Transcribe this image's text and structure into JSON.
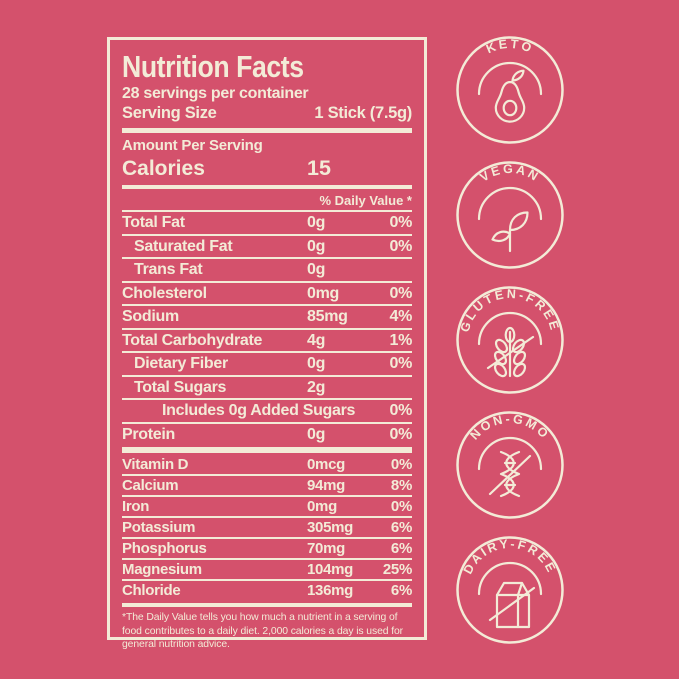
{
  "colors": {
    "background": "#d4516c",
    "cream": "#f3ebd7"
  },
  "label": {
    "title": "Nutrition Facts",
    "servings_per_container": "28 servings per container",
    "serving_size_label": "Serving Size",
    "serving_size_value": "1 Stick (7.5g)",
    "amount_per_serving": "Amount Per Serving",
    "calories_label": "Calories",
    "calories_value": "15",
    "daily_value_header": "% Daily Value *",
    "rows": [
      {
        "name": "Total Fat",
        "amount": "0g",
        "dv": "0%",
        "indent": 0,
        "bold": true
      },
      {
        "name": "Saturated Fat",
        "amount": "0g",
        "dv": "0%",
        "indent": 1,
        "bold": false
      },
      {
        "name": "Trans Fat",
        "amount": "0g",
        "dv": "",
        "indent": 1,
        "bold": false
      },
      {
        "name": "Cholesterol",
        "amount": "0mg",
        "dv": "0%",
        "indent": 0,
        "bold": true
      },
      {
        "name": "Sodium",
        "amount": "85mg",
        "dv": "4%",
        "indent": 0,
        "bold": true
      },
      {
        "name": "Total Carbohydrate",
        "amount": "4g",
        "dv": "1%",
        "indent": 0,
        "bold": true
      },
      {
        "name": "Dietary Fiber",
        "amount": "0g",
        "dv": "0%",
        "indent": 1,
        "bold": false
      },
      {
        "name": "Total Sugars",
        "amount": "2g",
        "dv": "",
        "indent": 1,
        "bold": false
      },
      {
        "name": "Includes 0g Added Sugars",
        "amount": "",
        "dv": "0%",
        "indent": 2,
        "bold": false
      },
      {
        "name": "Protein",
        "amount": "0g",
        "dv": "0%",
        "indent": 0,
        "bold": true
      }
    ],
    "micros": [
      {
        "name": "Vitamin D",
        "amount": "0mcg",
        "dv": "0%"
      },
      {
        "name": "Calcium",
        "amount": "94mg",
        "dv": "8%"
      },
      {
        "name": "Iron",
        "amount": "0mg",
        "dv": "0%"
      },
      {
        "name": "Potassium",
        "amount": "305mg",
        "dv": "6%"
      },
      {
        "name": "Phosphorus",
        "amount": "70mg",
        "dv": "6%"
      },
      {
        "name": "Magnesium",
        "amount": "104mg",
        "dv": "25%"
      },
      {
        "name": "Chloride",
        "amount": "136mg",
        "dv": "6%"
      }
    ],
    "footnote": "*The Daily Value tells you how much a nutrient in a serving of food contributes to a daily diet. 2,000 calories a day is used for general nutrition advice."
  },
  "badges": [
    {
      "label": "KETO",
      "icon": "avocado-icon"
    },
    {
      "label": "VEGAN",
      "icon": "sprout-icon"
    },
    {
      "label": "GLUTEN-FREE",
      "icon": "wheat-icon"
    },
    {
      "label": "NON-GMO",
      "icon": "dna-icon"
    },
    {
      "label": "DAIRY-FREE",
      "icon": "milk-carton-icon"
    }
  ]
}
